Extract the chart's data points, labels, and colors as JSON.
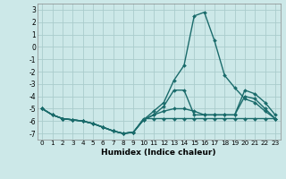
{
  "xlabel": "Humidex (Indice chaleur)",
  "background_color": "#cce8e8",
  "grid_color": "#aacccc",
  "line_color": "#1a6b6b",
  "xlim": [
    -0.5,
    23.5
  ],
  "ylim": [
    -7.5,
    3.5
  ],
  "yticks": [
    3,
    2,
    1,
    0,
    -1,
    -2,
    -3,
    -4,
    -5,
    -6,
    -7
  ],
  "xticks": [
    0,
    1,
    2,
    3,
    4,
    5,
    6,
    7,
    8,
    9,
    10,
    11,
    12,
    13,
    14,
    15,
    16,
    17,
    18,
    19,
    20,
    21,
    22,
    23
  ],
  "series": [
    [
      -5.0,
      -5.5,
      -5.8,
      -5.9,
      -6.0,
      -6.2,
      -6.5,
      -6.8,
      -7.0,
      -6.9,
      -5.8,
      -5.8,
      -5.8,
      -5.8,
      -5.8,
      -5.8,
      -5.8,
      -5.8,
      -5.8,
      -5.8,
      -5.8,
      -5.8,
      -5.8,
      -5.8
    ],
    [
      -5.0,
      -5.5,
      -5.8,
      -5.9,
      -6.0,
      -6.2,
      -6.5,
      -6.8,
      -7.0,
      -6.9,
      -5.9,
      -5.5,
      -5.2,
      -5.0,
      -5.0,
      -5.2,
      -5.5,
      -5.5,
      -5.5,
      -5.5,
      -4.0,
      -4.2,
      -5.0,
      -5.8
    ],
    [
      -5.0,
      -5.5,
      -5.8,
      -5.9,
      -6.0,
      -6.2,
      -6.5,
      -6.8,
      -7.0,
      -6.9,
      -5.9,
      -5.5,
      -4.8,
      -3.5,
      -3.5,
      -5.5,
      -5.5,
      -5.5,
      -5.5,
      -5.5,
      -3.5,
      -3.8,
      -4.5,
      -5.5
    ],
    [
      -5.0,
      -5.5,
      -5.8,
      -5.9,
      -6.0,
      -6.2,
      -6.5,
      -6.8,
      -7.0,
      -6.9,
      -5.9,
      -5.2,
      -4.5,
      -2.7,
      -1.5,
      2.5,
      2.8,
      0.5,
      -2.3,
      -3.3,
      -4.2,
      -4.5,
      -5.2,
      -5.8
    ]
  ],
  "marker": "D",
  "markersize": 2.0,
  "linewidth": 1.0
}
